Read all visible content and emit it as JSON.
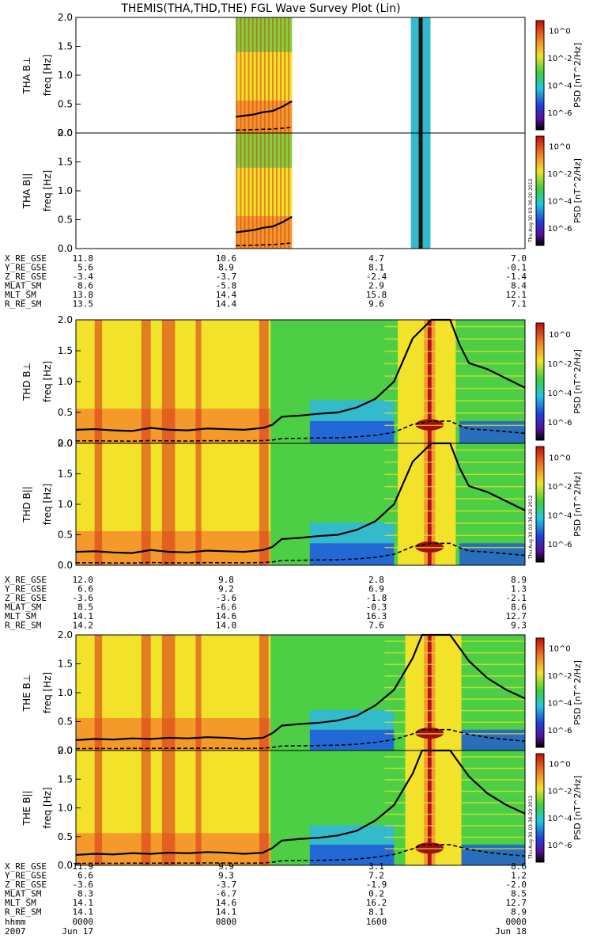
{
  "title": "THEMIS(THA,THD,THE) FGL Wave Survey Plot (Lin)",
  "timestamp": "Thu Aug 30 03:36:20 2012",
  "colorbar": {
    "label": "PSD [nT^2/Hz]",
    "ticks": [
      "10^0",
      "10^-2",
      "10^-4",
      "10^-6"
    ]
  },
  "colors": {
    "bg_green": "#4ccf44",
    "bg_yellow": "#f2e22a",
    "bg_orange": "#f39a2a",
    "bg_red": "#d93a1c",
    "bg_cyan": "#33bbcc",
    "bg_blue": "#1f55d8"
  },
  "chart_data": {
    "type": "heatmap",
    "x_tick_labels": [
      "0000",
      "0800",
      "1600",
      "0000"
    ],
    "x_hours": [
      0,
      8,
      16,
      24
    ],
    "ylim": [
      0,
      2.0
    ],
    "y_ticks": [
      "0.0",
      "0.5",
      "1.0",
      "1.5",
      "2.0"
    ],
    "ylabel": "freq [Hz]",
    "panels": [
      {
        "name": "THA B⊥",
        "probe": "tha"
      },
      {
        "name": "THA B||",
        "probe": "tha"
      },
      {
        "name": "THD B⊥",
        "probe": "thd"
      },
      {
        "name": "THD B||",
        "probe": "thd"
      },
      {
        "name": "THE B⊥",
        "probe": "the"
      },
      {
        "name": "THE B||",
        "probe": "the"
      }
    ],
    "orbit_tables": {
      "rows": [
        "X_RE_GSE",
        "Y_RE_GSE",
        "Z_RE_GSE",
        "MLAT_SM",
        "MLT_SM",
        "R_RE_SM"
      ],
      "tha": [
        [
          "11.8",
          "10.6",
          "4.7",
          "7.0"
        ],
        [
          "5.6",
          "8.9",
          "8.1",
          "-0.1"
        ],
        [
          "-3.4",
          "-3.7",
          "-2.4",
          "-1.4"
        ],
        [
          "8.6",
          "-5.8",
          "2.9",
          "8.4"
        ],
        [
          "13.8",
          "14.4",
          "15.8",
          "12.1"
        ],
        [
          "13.5",
          "14.4",
          "9.6",
          "7.1"
        ]
      ],
      "thd": [
        [
          "12.0",
          "9.8",
          "2.8",
          "8.9"
        ],
        [
          "6.6",
          "9.2",
          "6.9",
          "1.3"
        ],
        [
          "-3.6",
          "-3.6",
          "-1.8",
          "-2.1"
        ],
        [
          "8.5",
          "-6.6",
          "-0.3",
          "8.6"
        ],
        [
          "14.1",
          "14.6",
          "16.3",
          "12.7"
        ],
        [
          "14.2",
          "14.0",
          "7.6",
          "9.3"
        ]
      ],
      "the": [
        [
          "11.9",
          "9.9",
          "3.1",
          "8.6"
        ],
        [
          "6.6",
          "9.3",
          "7.2",
          "1.2"
        ],
        [
          "-3.6",
          "-3.7",
          "-1.9",
          "-2.0"
        ],
        [
          "8.3",
          "-6.7",
          "0.2",
          "8.5"
        ],
        [
          "14.1",
          "14.6",
          "16.2",
          "12.7"
        ],
        [
          "14.1",
          "14.1",
          "8.1",
          "8.9"
        ]
      ]
    },
    "time_row": {
      "label": "hhmm",
      "values": [
        "0000",
        "0800",
        "1600",
        "0000"
      ]
    },
    "date_row": {
      "year": "2007",
      "start": "Jun 17",
      "end": "Jun 18"
    },
    "tha_data_intervals_hours": [
      [
        8.55,
        11.55
      ],
      [
        17.9,
        18.95
      ]
    ],
    "fce_line_thd": {
      "x_hours": [
        0,
        1,
        2,
        3,
        4,
        5,
        6,
        7,
        8,
        9,
        10,
        10.5,
        11,
        12,
        13,
        14,
        15,
        16,
        17,
        18,
        19,
        19.5,
        20,
        20.5,
        21,
        22,
        23,
        24
      ],
      "y_hz": [
        0.22,
        0.23,
        0.21,
        0.2,
        0.25,
        0.22,
        0.21,
        0.24,
        0.23,
        0.22,
        0.25,
        0.3,
        0.43,
        0.45,
        0.48,
        0.5,
        0.58,
        0.72,
        1.0,
        1.7,
        2.0,
        2.0,
        2.0,
        1.6,
        1.3,
        1.2,
        1.05,
        0.9
      ]
    },
    "fce_line_the": {
      "x_hours": [
        0,
        1,
        2,
        3,
        4,
        5,
        6,
        7,
        8,
        9,
        10,
        10.5,
        11,
        12,
        13,
        14,
        15,
        16,
        17,
        18,
        18.5,
        19,
        19.5,
        20,
        21,
        22,
        23,
        24
      ],
      "y_hz": [
        0.18,
        0.2,
        0.19,
        0.21,
        0.2,
        0.22,
        0.21,
        0.23,
        0.22,
        0.2,
        0.22,
        0.3,
        0.43,
        0.46,
        0.48,
        0.52,
        0.6,
        0.78,
        1.05,
        1.6,
        2.0,
        2.0,
        2.0,
        2.0,
        1.55,
        1.25,
        1.05,
        0.9
      ]
    },
    "fce_line_tha": {
      "x_hours": [
        8.55,
        9,
        9.5,
        10,
        10.5,
        11,
        11.55
      ],
      "y_hz": [
        0.28,
        0.3,
        0.32,
        0.36,
        0.38,
        0.45,
        0.55
      ]
    }
  }
}
